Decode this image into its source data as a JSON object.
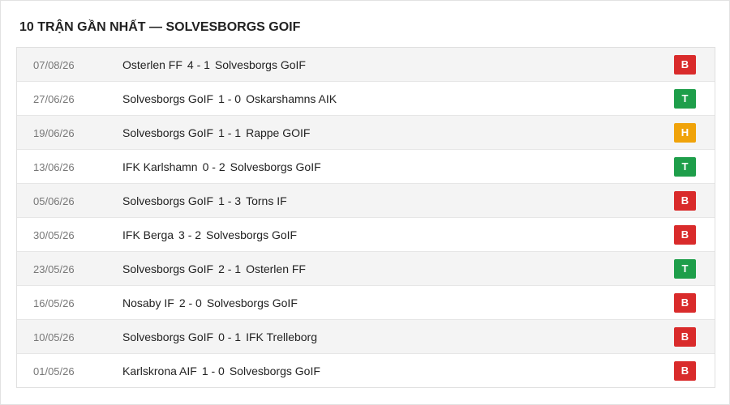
{
  "header": {
    "title": "10 TRẬN GẦN NHẤT — SOLVESBORGS GOIF"
  },
  "table": {
    "rows": [
      {
        "date": "07/08/26",
        "home": "Osterlen FF",
        "score": "4 - 1",
        "away": "Solvesborgs GoIF",
        "result": "B",
        "color": "#d92b2b"
      },
      {
        "date": "27/06/26",
        "home": "Solvesborgs GoIF",
        "score": "1 - 0",
        "away": "Oskarshamns AIK",
        "result": "T",
        "color": "#1e9e4a"
      },
      {
        "date": "19/06/26",
        "home": "Solvesborgs GoIF",
        "score": "1 - 1",
        "away": "Rappe GOIF",
        "result": "H",
        "color": "#f0a30a"
      },
      {
        "date": "13/06/26",
        "home": "IFK Karlshamn",
        "score": "0 - 2",
        "away": "Solvesborgs GoIF",
        "result": "T",
        "color": "#1e9e4a"
      },
      {
        "date": "05/06/26",
        "home": "Solvesborgs GoIF",
        "score": "1 - 3",
        "away": "Torns IF",
        "result": "B",
        "color": "#d92b2b"
      },
      {
        "date": "30/05/26",
        "home": "IFK Berga",
        "score": "3 - 2",
        "away": "Solvesborgs GoIF",
        "result": "B",
        "color": "#d92b2b"
      },
      {
        "date": "23/05/26",
        "home": "Solvesborgs GoIF",
        "score": "2 - 1",
        "away": "Osterlen FF",
        "result": "T",
        "color": "#1e9e4a"
      },
      {
        "date": "16/05/26",
        "home": "Nosaby IF",
        "score": "2 - 0",
        "away": "Solvesborgs GoIF",
        "result": "B",
        "color": "#d92b2b"
      },
      {
        "date": "10/05/26",
        "home": "Solvesborgs GoIF",
        "score": "0 - 1",
        "away": "IFK Trelleborg",
        "result": "B",
        "color": "#d92b2b"
      },
      {
        "date": "01/05/26",
        "home": "Karlskrona AIF",
        "score": "1 - 0",
        "away": "Solvesborgs GoIF",
        "result": "B",
        "color": "#d92b2b"
      }
    ]
  }
}
